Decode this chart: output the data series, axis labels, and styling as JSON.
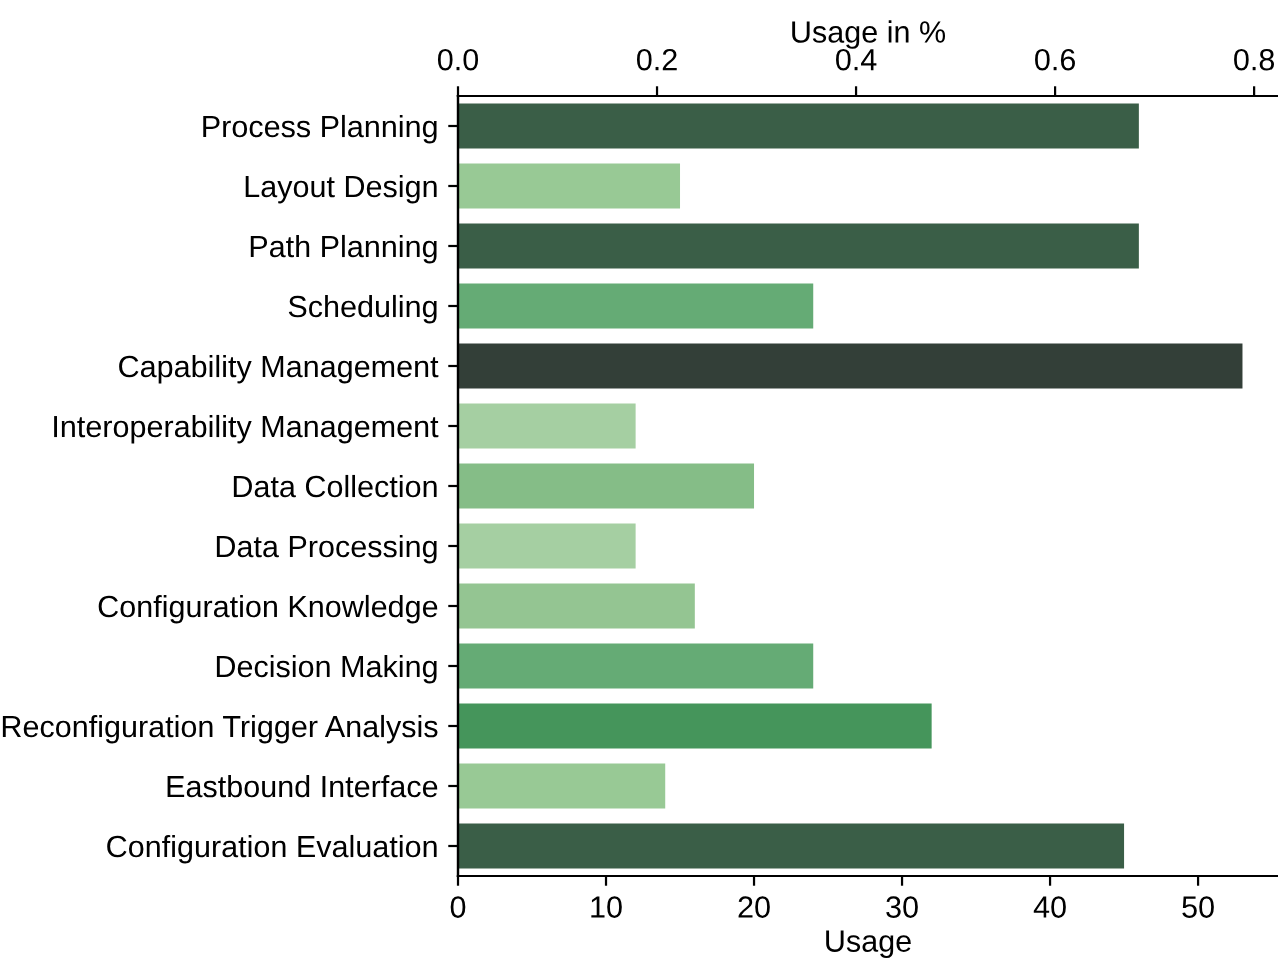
{
  "chart_data": {
    "type": "bar",
    "orientation": "horizontal",
    "xlabel": "Usage",
    "x2label": "Usage in %",
    "categories": [
      "Process Planning",
      "Layout Design",
      "Path Planning",
      "Scheduling",
      "Capability Management",
      "Interoperability Management",
      "Data Collection",
      "Data Processing",
      "Configuration Knowledge",
      "Decision Making",
      "Reconfiguration Trigger Analysis",
      "Eastbound Interface",
      "Configuration Evaluation"
    ],
    "values": [
      46,
      15,
      46,
      24,
      53,
      12,
      20,
      12,
      16,
      24,
      32,
      14,
      45
    ],
    "colors": [
      "#3a5e47",
      "#98c995",
      "#3a5e47",
      "#65ab75",
      "#333f38",
      "#a5cfa2",
      "#85bd87",
      "#a5cfa2",
      "#94c592",
      "#65ab75",
      "#45955b",
      "#98c995",
      "#3a5e47"
    ],
    "xlim": [
      0,
      55.4
    ],
    "xticks": [
      0,
      10,
      20,
      30,
      40,
      50
    ],
    "x2lim": [
      0,
      0.824
    ],
    "x2ticks": [
      {
        "value": 0,
        "label": "0.0"
      },
      0.2,
      0.4,
      0.6,
      0.8
    ],
    "grid": false,
    "legend": false
  }
}
